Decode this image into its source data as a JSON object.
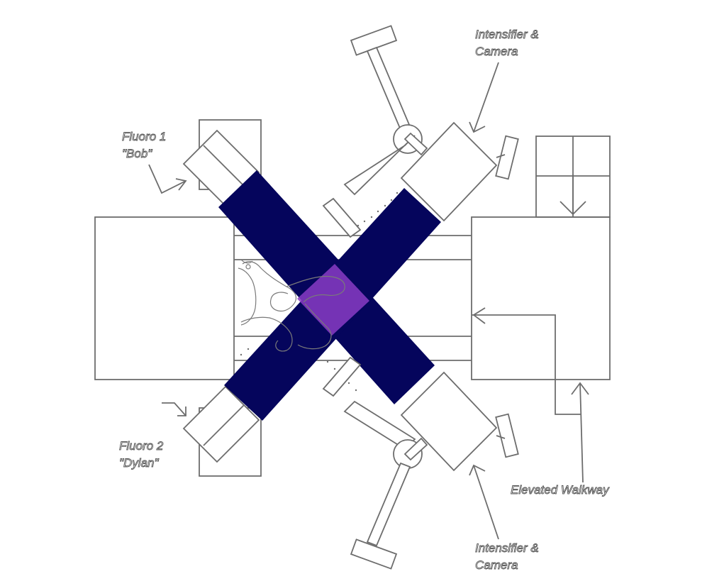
{
  "colors": {
    "beam": "#05055c",
    "overlap": "#8a3cc4",
    "outline": "#6d6d6d",
    "label_fill": "#ffffff",
    "label_stroke": "#555555"
  },
  "labels": {
    "fluoro1": {
      "line1": "Fluoro 1",
      "line2": "\"Bob\""
    },
    "fluoro2": {
      "line1": "Fluoro 2",
      "line2": "\"Dylan\""
    },
    "intensifier_top": {
      "line1": "Intensifier &",
      "line2": "Camera"
    },
    "intensifier_bottom": {
      "line1": "Intensifier &",
      "line2": "Camera"
    },
    "walkway": "Elevated  Walkway"
  }
}
